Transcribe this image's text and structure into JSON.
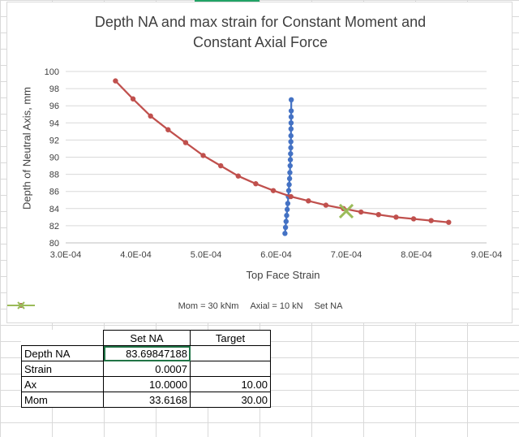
{
  "chart_data": {
    "type": "scatter",
    "title_lines": [
      "Depth NA and max strain for Constant Moment and",
      "Constant Axial Force"
    ],
    "xlabel": "Top Face Strain",
    "ylabel": "Depth of Neutral Axis, mm",
    "xlim": [
      0.0003,
      0.0009
    ],
    "ylim": [
      80,
      100
    ],
    "x_ticks": [
      "3.0E-04",
      "4.0E-04",
      "5.0E-04",
      "6.0E-04",
      "7.0E-04",
      "8.0E-04",
      "9.0E-04"
    ],
    "y_ticks": [
      "80",
      "82",
      "84",
      "86",
      "88",
      "90",
      "92",
      "94",
      "96",
      "98",
      "100"
    ],
    "grid": "horizontal",
    "legend_position": "bottom",
    "series": [
      {
        "name": "Mom = 30 kNm",
        "color": "#4472c4",
        "marker": "circle",
        "x": [
          0.0006126,
          0.0006134,
          0.0006142,
          0.000615,
          0.0006158,
          0.0006166,
          0.0006174,
          0.000618,
          0.0006186,
          0.0006192,
          0.0006196,
          0.00062,
          0.0006203,
          0.0006206,
          0.0006209,
          0.000621,
          0.0006211,
          0.0006212,
          0.0006213,
          0.0006214,
          0.0006215,
          0.0006216
        ],
        "y": [
          81.1,
          81.8,
          82.5,
          83.2,
          83.9,
          84.6,
          85.4,
          86.1,
          86.8,
          87.5,
          88.2,
          89.0,
          89.7,
          90.4,
          91.1,
          91.8,
          92.5,
          93.3,
          94.0,
          94.7,
          95.4,
          96.7
        ]
      },
      {
        "name": "Axial = 10 kN",
        "color": "#c0504d",
        "marker": "circle",
        "x": [
          0.000371,
          0.000396,
          0.000421,
          0.000446,
          0.000471,
          0.000496,
          0.000521,
          0.000546,
          0.000571,
          0.000596,
          0.000621,
          0.000646,
          0.000671,
          0.000696,
          0.000721,
          0.000746,
          0.000771,
          0.000796,
          0.000821,
          0.000846
        ],
        "y": [
          98.9,
          96.8,
          94.8,
          93.2,
          91.7,
          90.2,
          89.0,
          87.8,
          86.9,
          86.1,
          85.4,
          84.9,
          84.4,
          84.0,
          83.6,
          83.3,
          83.0,
          82.8,
          82.6,
          82.4
        ]
      },
      {
        "name": "Set NA",
        "color": "#9bbb59",
        "marker": "x",
        "x": [
          0.0007
        ],
        "y": [
          83.69847188
        ]
      }
    ]
  },
  "table": {
    "headers": [
      "",
      "Set NA",
      "Target"
    ],
    "rows": [
      {
        "label": "Depth NA",
        "set": "83.69847188",
        "target": ""
      },
      {
        "label": "Strain",
        "set": "0.0007",
        "target": ""
      },
      {
        "label": "Ax",
        "set": "10.0000",
        "target": "10.00"
      },
      {
        "label": "Mom",
        "set": "33.6168",
        "target": "30.00"
      }
    ]
  }
}
